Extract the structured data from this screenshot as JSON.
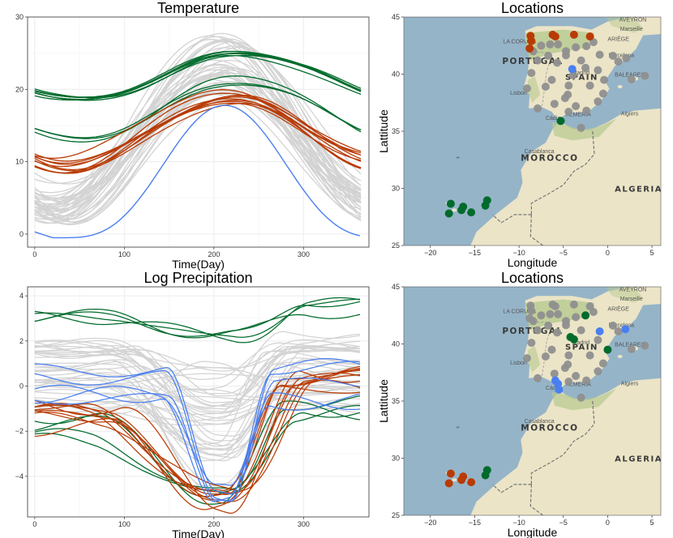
{
  "colors": {
    "gray": "#d3d3d3",
    "green": "#006b2c",
    "red": "#b83b05",
    "blue": "#4a7ff0",
    "sea": "#95b4c8",
    "land": "#ebe4c7",
    "green_land": "#b7c98f",
    "dot": "#8f8f8f"
  },
  "chart_data": [
    {
      "type": "line",
      "title": "Temperature",
      "xlabel": "Time(Day)",
      "ylabel": "",
      "xlim": [
        -8,
        373
      ],
      "ylim": [
        -1.8,
        30
      ],
      "xticks": [
        0,
        100,
        200,
        300
      ],
      "yticks": [
        0,
        10,
        20,
        30
      ],
      "grid": true,
      "series": [
        {
          "group": "gray",
          "count": 40,
          "min_range": [
            1,
            7
          ],
          "max_range": [
            19,
            28
          ],
          "peak_day_range": [
            195,
            225
          ]
        },
        {
          "group": "green",
          "count": 7,
          "min_range": [
            17.8,
            18.8
          ],
          "max_range": [
            24,
            25.5
          ],
          "peak_day_range": [
            225,
            240
          ]
        },
        {
          "group": "green",
          "count": 3,
          "min_range": [
            12.5,
            13.5
          ],
          "max_range": [
            20,
            22
          ],
          "peak_day_range": [
            225,
            235
          ]
        },
        {
          "group": "red",
          "count": 10,
          "min_range": [
            8,
            11
          ],
          "max_range": [
            18,
            20.5
          ],
          "peak_day_range": [
            205,
            225
          ]
        },
        {
          "group": "blue",
          "count": 1,
          "min": -0.5,
          "max": 17.8,
          "peak_day": 212
        }
      ]
    },
    {
      "type": "line",
      "title": "Log Precipitation",
      "xlabel": "Time(Day)",
      "ylabel": "",
      "xlim": [
        -8,
        373
      ],
      "ylim": [
        -5.8,
        4.4
      ],
      "xticks": [
        0,
        100,
        200,
        300
      ],
      "yticks": [
        -4,
        -2,
        0,
        2,
        4
      ],
      "grid": true,
      "series": [
        {
          "group": "gray",
          "count": 40,
          "start_range": [
            -1,
            2
          ],
          "trough_range": [
            -4.5,
            1
          ],
          "trough_day_range": [
            195,
            215
          ]
        },
        {
          "group": "green",
          "count": 4,
          "start_range": [
            3,
            3.2
          ],
          "trough_range": [
            2.1,
            2.3
          ],
          "end_range": [
            3.2,
            3.9
          ]
        },
        {
          "group": "green",
          "count": 4,
          "start_range": [
            -2.9,
            -1.2
          ],
          "trough_range": [
            -5.2,
            -4.8
          ],
          "end_range": [
            -1.3,
            -0.5
          ]
        },
        {
          "group": "red",
          "count": 9,
          "start_range": [
            -2,
            -0.3
          ],
          "trough_range": [
            -5.3,
            -4.7
          ],
          "end_range": [
            -0.4,
            0.8
          ]
        },
        {
          "group": "blue",
          "count": 5,
          "start_range": [
            -0.6,
            0.8
          ],
          "trough_range": [
            -4.9,
            -4.7
          ],
          "end_range": [
            -1.5,
            1.3
          ]
        }
      ]
    },
    {
      "type": "scatter",
      "title": "Locations",
      "xlabel": "Longitude",
      "ylabel": "Lattitude",
      "xlim": [
        -23,
        6
      ],
      "ylim": [
        25,
        45
      ],
      "xticks": [
        -20,
        -15,
        -10,
        -5,
        0,
        5
      ],
      "yticks": [
        25,
        30,
        35,
        40,
        45
      ],
      "place_labels": [
        "PORTUGAL",
        "SPAIN",
        "MOROCCO",
        "ALGERIA",
        "AVEYRON",
        "Marseille",
        "ARIÈGE",
        "Barcelona",
        "LA CORUÑA",
        "Lisbon",
        "BALEARES",
        "Algiers",
        "Casablanca",
        "ALMERÍA",
        "Cádiz",
        "Madrid"
      ],
      "points": [
        {
          "lon": -8.7,
          "lat": 43.35,
          "g": "red"
        },
        {
          "lon": -8.6,
          "lat": 42.9,
          "g": "red"
        },
        {
          "lon": -8.8,
          "lat": 42.25,
          "g": "red"
        },
        {
          "lon": -6.2,
          "lat": 43.45,
          "g": "red"
        },
        {
          "lon": -5.9,
          "lat": 43.3,
          "g": "red"
        },
        {
          "lon": -3.8,
          "lat": 43.45,
          "g": "red"
        },
        {
          "lon": -2.0,
          "lat": 43.3,
          "g": "red"
        },
        {
          "lon": -4.0,
          "lat": 40.45,
          "g": "blue"
        },
        {
          "lon": -5.3,
          "lat": 35.9,
          "g": "green"
        },
        {
          "lon": -17.9,
          "lat": 27.8,
          "g": "green"
        },
        {
          "lon": -17.7,
          "lat": 28.65,
          "g": "green"
        },
        {
          "lon": -16.5,
          "lat": 28.1,
          "g": "green"
        },
        {
          "lon": -16.3,
          "lat": 28.4,
          "g": "green"
        },
        {
          "lon": -15.4,
          "lat": 27.9,
          "g": "green"
        },
        {
          "lon": -13.8,
          "lat": 28.5,
          "g": "green"
        },
        {
          "lon": -13.6,
          "lat": 28.95,
          "g": "green"
        },
        {
          "lon": -8.4,
          "lat": 42.0,
          "g": "gray"
        },
        {
          "lon": -7.5,
          "lat": 42.5,
          "g": "gray"
        },
        {
          "lon": -6.5,
          "lat": 42.6,
          "g": "gray"
        },
        {
          "lon": -5.6,
          "lat": 42.6,
          "g": "gray"
        },
        {
          "lon": -4.7,
          "lat": 42.0,
          "g": "gray"
        },
        {
          "lon": -3.6,
          "lat": 42.35,
          "g": "gray"
        },
        {
          "lon": -2.4,
          "lat": 42.45,
          "g": "gray"
        },
        {
          "lon": -1.6,
          "lat": 42.8,
          "g": "gray"
        },
        {
          "lon": -0.9,
          "lat": 41.7,
          "g": "gray"
        },
        {
          "lon": 0.6,
          "lat": 41.6,
          "g": "gray"
        },
        {
          "lon": 1.2,
          "lat": 41.1,
          "g": "gray"
        },
        {
          "lon": 2.1,
          "lat": 41.4,
          "g": "gray"
        },
        {
          "lon": -7.9,
          "lat": 41.2,
          "g": "gray"
        },
        {
          "lon": -6.7,
          "lat": 41.6,
          "g": "gray"
        },
        {
          "lon": -5.7,
          "lat": 41.0,
          "g": "gray"
        },
        {
          "lon": -4.7,
          "lat": 41.65,
          "g": "gray"
        },
        {
          "lon": -3.0,
          "lat": 41.2,
          "g": "gray"
        },
        {
          "lon": -2.5,
          "lat": 40.55,
          "g": "gray"
        },
        {
          "lon": -1.1,
          "lat": 40.35,
          "g": "gray"
        },
        {
          "lon": -0.4,
          "lat": 39.5,
          "g": "gray"
        },
        {
          "lon": -9.1,
          "lat": 38.75,
          "g": "gray"
        },
        {
          "lon": -8.6,
          "lat": 40.1,
          "g": "gray"
        },
        {
          "lon": -7.0,
          "lat": 38.9,
          "g": "gray"
        },
        {
          "lon": -6.3,
          "lat": 39.5,
          "g": "gray"
        },
        {
          "lon": -4.4,
          "lat": 39.0,
          "g": "gray"
        },
        {
          "lon": -3.9,
          "lat": 39.9,
          "g": "gray"
        },
        {
          "lon": -2.0,
          "lat": 39.0,
          "g": "gray"
        },
        {
          "lon": -0.5,
          "lat": 38.3,
          "g": "gray"
        },
        {
          "lon": -7.9,
          "lat": 37.0,
          "g": "gray"
        },
        {
          "lon": -6.0,
          "lat": 37.4,
          "g": "gray"
        },
        {
          "lon": -4.8,
          "lat": 37.9,
          "g": "gray"
        },
        {
          "lon": -3.6,
          "lat": 37.2,
          "g": "gray"
        },
        {
          "lon": -2.4,
          "lat": 36.8,
          "g": "gray"
        },
        {
          "lon": -4.4,
          "lat": 36.7,
          "g": "gray"
        },
        {
          "lon": -1.1,
          "lat": 37.6,
          "g": "gray"
        },
        {
          "lon": 2.7,
          "lat": 39.55,
          "g": "gray"
        },
        {
          "lon": 4.2,
          "lat": 39.85,
          "g": "gray"
        },
        {
          "lon": -3.0,
          "lat": 35.3,
          "g": "gray"
        },
        {
          "lon": -4.5,
          "lat": 38.2,
          "g": "gray"
        }
      ]
    },
    {
      "type": "scatter",
      "title": "Locations",
      "xlabel": "Longitude",
      "ylabel": "Lattitude",
      "xlim": [
        -23,
        6
      ],
      "ylim": [
        25,
        45
      ],
      "xticks": [
        -20,
        -15,
        -10,
        -5,
        0,
        5
      ],
      "yticks": [
        25,
        30,
        35,
        40,
        45
      ],
      "place_labels": [
        "PORTUGAL",
        "SPAIN",
        "MOROCCO",
        "ALGERIA",
        "AVEYRON",
        "Marseille",
        "ARIÈGE",
        "Barcelona",
        "LA CORUÑA",
        "Lisbon",
        "BALEARES",
        "Algiers",
        "Casablanca",
        "ALMERÍA",
        "Cádiz",
        "Madrid"
      ],
      "points": [
        {
          "lon": -8.7,
          "lat": 43.35,
          "g": "gray"
        },
        {
          "lon": -8.6,
          "lat": 42.9,
          "g": "gray"
        },
        {
          "lon": -8.8,
          "lat": 42.25,
          "g": "gray"
        },
        {
          "lon": -6.2,
          "lat": 43.45,
          "g": "gray"
        },
        {
          "lon": -5.9,
          "lat": 43.3,
          "g": "gray"
        },
        {
          "lon": -3.8,
          "lat": 43.45,
          "g": "gray"
        },
        {
          "lon": -2.0,
          "lat": 43.3,
          "g": "gray"
        },
        {
          "lon": -2.5,
          "lat": 42.5,
          "g": "green"
        },
        {
          "lon": -4.2,
          "lat": 40.6,
          "g": "green"
        },
        {
          "lon": -3.8,
          "lat": 40.4,
          "g": "green"
        },
        {
          "lon": 0.0,
          "lat": 39.5,
          "g": "green"
        },
        {
          "lon": -0.9,
          "lat": 41.1,
          "g": "blue"
        },
        {
          "lon": 2.0,
          "lat": 41.3,
          "g": "blue"
        },
        {
          "lon": -5.6,
          "lat": 36.5,
          "g": "blue"
        },
        {
          "lon": -5.9,
          "lat": 36.8,
          "g": "blue"
        },
        {
          "lon": -5.5,
          "lat": 36.0,
          "g": "blue"
        },
        {
          "lon": -17.9,
          "lat": 27.8,
          "g": "red"
        },
        {
          "lon": -17.7,
          "lat": 28.65,
          "g": "red"
        },
        {
          "lon": -16.5,
          "lat": 28.1,
          "g": "red"
        },
        {
          "lon": -16.3,
          "lat": 28.4,
          "g": "red"
        },
        {
          "lon": -15.4,
          "lat": 27.9,
          "g": "red"
        },
        {
          "lon": -13.8,
          "lat": 28.5,
          "g": "green"
        },
        {
          "lon": -13.6,
          "lat": 28.95,
          "g": "green"
        },
        {
          "lon": -8.4,
          "lat": 42.0,
          "g": "gray"
        },
        {
          "lon": -7.5,
          "lat": 42.5,
          "g": "gray"
        },
        {
          "lon": -6.5,
          "lat": 42.6,
          "g": "gray"
        },
        {
          "lon": -5.6,
          "lat": 42.6,
          "g": "gray"
        },
        {
          "lon": -4.7,
          "lat": 42.0,
          "g": "gray"
        },
        {
          "lon": -3.6,
          "lat": 42.35,
          "g": "gray"
        },
        {
          "lon": -1.6,
          "lat": 42.8,
          "g": "gray"
        },
        {
          "lon": 0.6,
          "lat": 41.6,
          "g": "gray"
        },
        {
          "lon": 1.2,
          "lat": 41.1,
          "g": "gray"
        },
        {
          "lon": -7.9,
          "lat": 41.2,
          "g": "gray"
        },
        {
          "lon": -6.7,
          "lat": 41.6,
          "g": "gray"
        },
        {
          "lon": -5.7,
          "lat": 41.0,
          "g": "gray"
        },
        {
          "lon": -4.7,
          "lat": 41.65,
          "g": "gray"
        },
        {
          "lon": -3.0,
          "lat": 41.2,
          "g": "gray"
        },
        {
          "lon": -1.1,
          "lat": 40.35,
          "g": "gray"
        },
        {
          "lon": -9.1,
          "lat": 38.75,
          "g": "gray"
        },
        {
          "lon": -8.6,
          "lat": 40.1,
          "g": "gray"
        },
        {
          "lon": -7.0,
          "lat": 38.9,
          "g": "gray"
        },
        {
          "lon": -6.3,
          "lat": 39.5,
          "g": "gray"
        },
        {
          "lon": -4.4,
          "lat": 39.0,
          "g": "gray"
        },
        {
          "lon": -2.0,
          "lat": 39.0,
          "g": "gray"
        },
        {
          "lon": -0.5,
          "lat": 38.3,
          "g": "gray"
        },
        {
          "lon": -7.9,
          "lat": 37.0,
          "g": "gray"
        },
        {
          "lon": -6.0,
          "lat": 37.4,
          "g": "gray"
        },
        {
          "lon": -4.8,
          "lat": 37.9,
          "g": "gray"
        },
        {
          "lon": -3.6,
          "lat": 37.2,
          "g": "gray"
        },
        {
          "lon": -2.4,
          "lat": 36.8,
          "g": "gray"
        },
        {
          "lon": -4.4,
          "lat": 36.7,
          "g": "gray"
        },
        {
          "lon": -1.1,
          "lat": 37.6,
          "g": "gray"
        },
        {
          "lon": 2.7,
          "lat": 39.55,
          "g": "gray"
        },
        {
          "lon": 4.2,
          "lat": 39.85,
          "g": "gray"
        },
        {
          "lon": -3.0,
          "lat": 35.3,
          "g": "gray"
        },
        {
          "lon": -4.5,
          "lat": 38.2,
          "g": "gray"
        }
      ]
    }
  ]
}
